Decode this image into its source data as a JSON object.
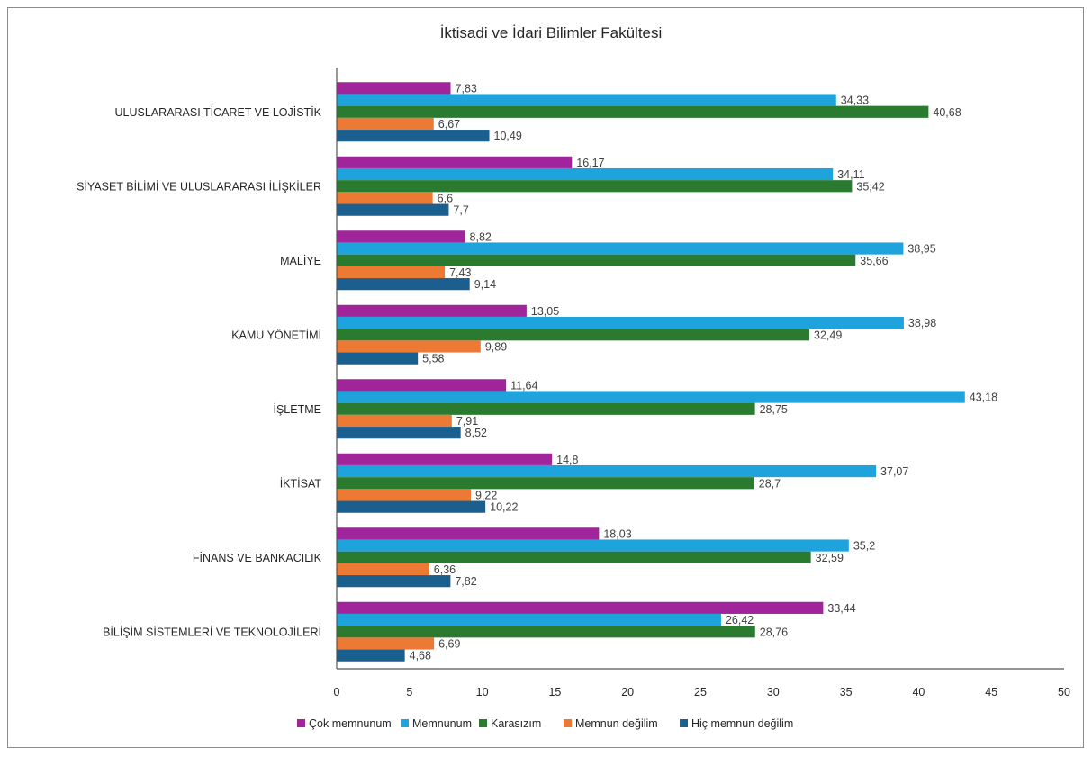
{
  "chart_data": {
    "type": "bar",
    "orientation": "horizontal",
    "title": "İktisadi ve İdari Bilimler Fakültesi",
    "categories": [
      "ULUSLARARASI TİCARET VE LOJİSTİK",
      "SİYASET BİLİMİ VE ULUSLARARASI İLİŞKİLER",
      "MALİYE",
      "KAMU YÖNETİMİ",
      "İŞLETME",
      "İKTİSAT",
      "FİNANS VE BANKACILIK",
      "BİLİŞİM SİSTEMLERİ VE TEKNOLOJİLERİ"
    ],
    "series": [
      {
        "name": "Çok memnunum",
        "color": "#a0259a",
        "values": [
          7.83,
          16.17,
          8.82,
          13.05,
          11.64,
          14.8,
          18.03,
          33.44
        ],
        "labels": [
          "7,83",
          "16,17",
          "8,82",
          "13,05",
          "11,64",
          "14,8",
          "18,03",
          "33,44"
        ]
      },
      {
        "name": "Memnunum",
        "color": "#1fa3dd",
        "values": [
          34.33,
          34.11,
          38.95,
          38.98,
          43.18,
          37.07,
          35.2,
          26.42
        ],
        "labels": [
          "34,33",
          "34,11",
          "38,95",
          "38,98",
          "43,18",
          "37,07",
          "35,2",
          "26,42"
        ]
      },
      {
        "name": "Karasızım",
        "color": "#2a7a2f",
        "values": [
          40.68,
          35.42,
          35.66,
          32.49,
          28.75,
          28.7,
          32.59,
          28.76
        ],
        "labels": [
          "40,68",
          "35,42",
          "35,66",
          "32,49",
          "28,75",
          "28,7",
          "32,59",
          "28,76"
        ]
      },
      {
        "name": "Memnun değilim",
        "color": "#ec7a34",
        "values": [
          6.67,
          6.6,
          7.43,
          9.89,
          7.91,
          9.22,
          6.36,
          6.69
        ],
        "labels": [
          "6,67",
          "6,6",
          "7,43",
          "9,89",
          "7,91",
          "9,22",
          "6,36",
          "6,69"
        ]
      },
      {
        "name": "Hiç memnun değilim",
        "color": "#1b5f8f",
        "values": [
          10.49,
          7.7,
          9.14,
          5.58,
          8.52,
          10.22,
          7.82,
          4.68
        ],
        "labels": [
          "10,49",
          "7,7",
          "9,14",
          "5,58",
          "8,52",
          "10,22",
          "7,82",
          "4,68"
        ]
      }
    ],
    "xlim": [
      0,
      50
    ],
    "x_ticks": [
      0,
      5,
      10,
      15,
      20,
      25,
      30,
      35,
      40,
      45,
      50
    ],
    "xlabel": "",
    "ylabel": "",
    "grid": false,
    "legend": "bottom"
  }
}
